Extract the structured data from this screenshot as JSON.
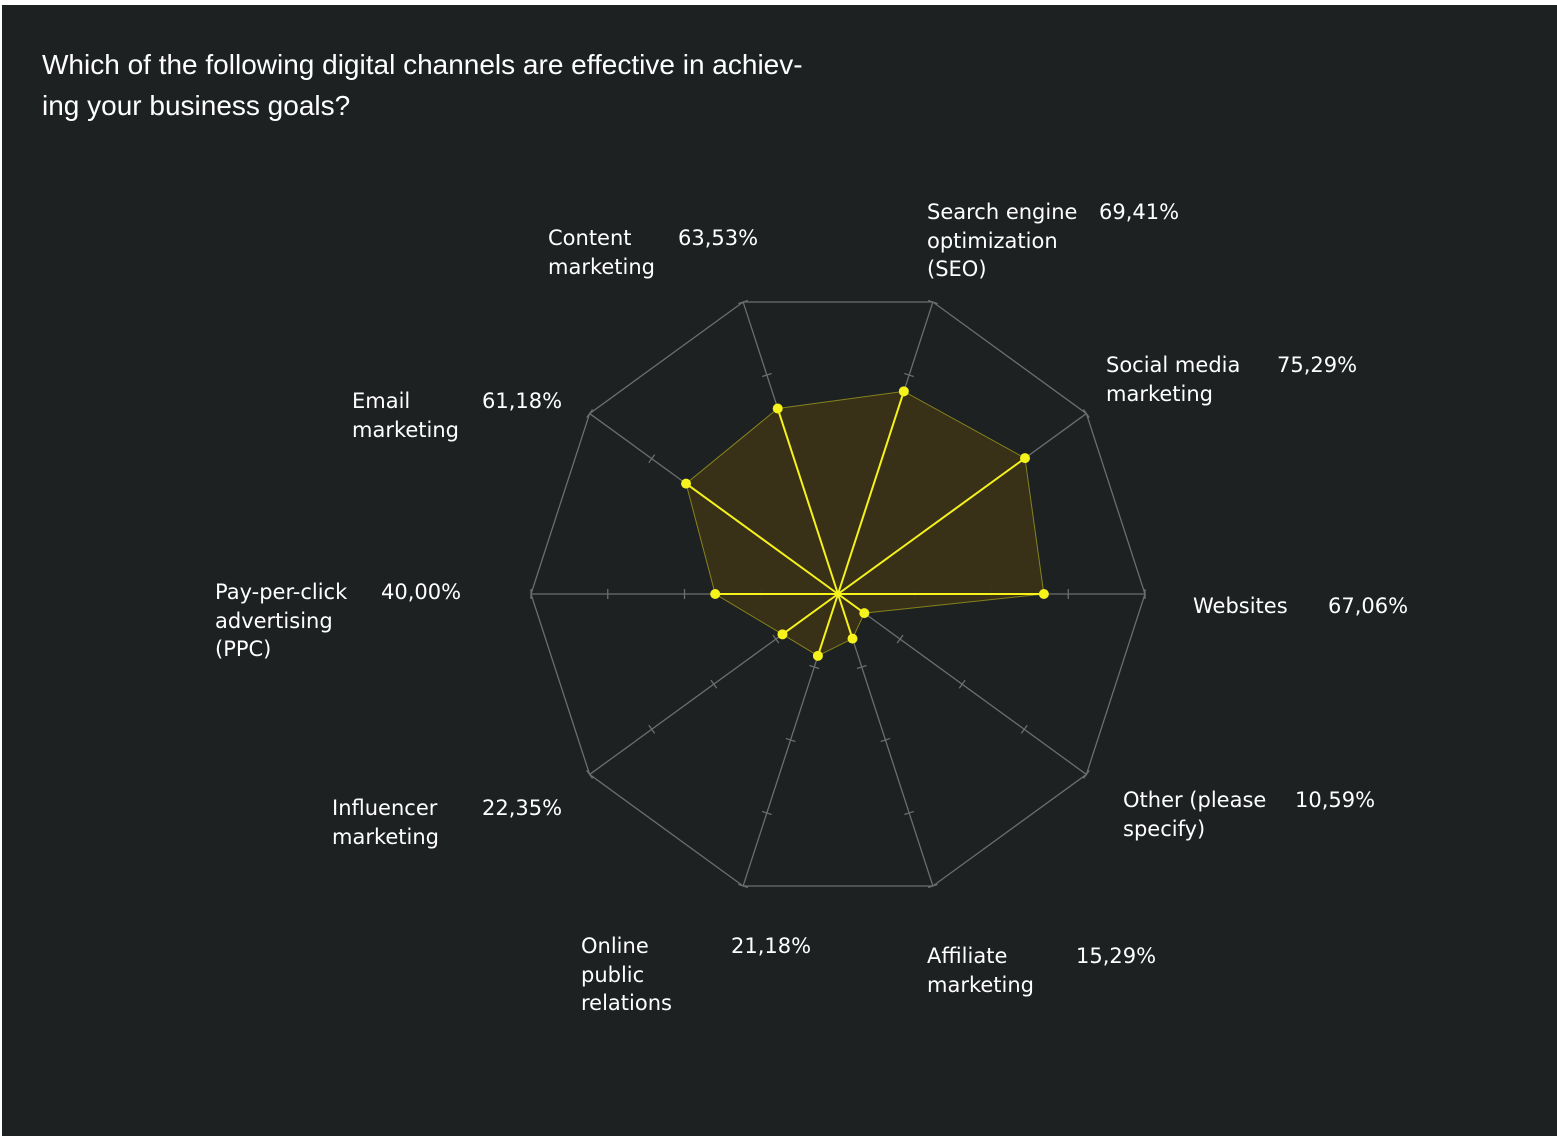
{
  "title_lines": [
    "Which of the following digital channels are effective in achiev-",
    "ing your business goals?"
  ],
  "colors": {
    "background": "#1d2122",
    "grid": "#6b6e70",
    "accent": "#f5f21c",
    "fill": "#3a3217",
    "text": "#ffffff"
  },
  "chart_data": {
    "type": "radar",
    "title": "Which of the following digital channels are effective in achieving your business goals?",
    "scale_max": 100,
    "grid": true,
    "categories": [
      {
        "name_lines": [
          "Websites"
        ],
        "value": 67.06,
        "label": "67,06%"
      },
      {
        "name_lines": [
          "Social media",
          "marketing"
        ],
        "value": 75.29,
        "label": "75,29%"
      },
      {
        "name_lines": [
          "Search engine",
          "optimization",
          "(SEO)"
        ],
        "value": 69.41,
        "label": "69,41%"
      },
      {
        "name_lines": [
          "Content",
          "marketing"
        ],
        "value": 63.53,
        "label": "63,53%"
      },
      {
        "name_lines": [
          "Email",
          "marketing"
        ],
        "value": 61.18,
        "label": "61,18%"
      },
      {
        "name_lines": [
          "Pay-per-click",
          "advertising",
          "(PPC)"
        ],
        "value": 40.0,
        "label": "40,00%"
      },
      {
        "name_lines": [
          "Influencer",
          "marketing"
        ],
        "value": 22.35,
        "label": "22,35%"
      },
      {
        "name_lines": [
          "Online",
          "public",
          "relations"
        ],
        "value": 21.18,
        "label": "21,18%"
      },
      {
        "name_lines": [
          "Affiliate",
          "marketing"
        ],
        "value": 15.29,
        "label": "15,29%"
      },
      {
        "name_lines": [
          "Other (please",
          "specify)"
        ],
        "value": 10.59,
        "label": "10,59%"
      }
    ]
  }
}
